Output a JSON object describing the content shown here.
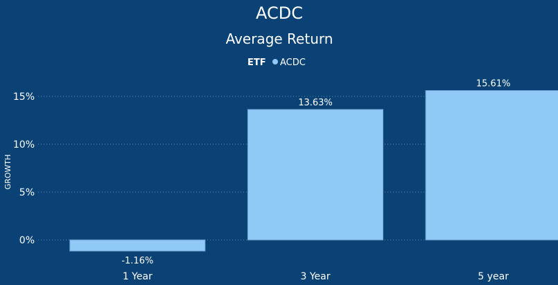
{
  "colors": {
    "background": "#0b4275",
    "bar": "#8fcaf7",
    "bar_edge": "#6fa7d6",
    "text": "#ffffff",
    "grid": "#5f86a8"
  },
  "chart_data": {
    "type": "bar",
    "title": "ACDC",
    "subtitle": "Average Return",
    "legend_title": "ETF",
    "legend_placement": "top-center",
    "ylabel": "GROWTH",
    "xlabel": "",
    "categories": [
      "1 Year",
      "3 Year",
      "5 year"
    ],
    "series": [
      {
        "name": "ACDC",
        "values": [
          -1.16,
          13.63,
          15.61
        ],
        "labels": [
          "-1.16%",
          "13.63%",
          "15.61%"
        ]
      }
    ],
    "ylim": [
      -1.9,
      16.3
    ],
    "yticks": [
      0,
      5,
      10,
      15
    ],
    "ytick_labels": [
      "0%",
      "5%",
      "10%",
      "15%"
    ],
    "grid": true
  }
}
